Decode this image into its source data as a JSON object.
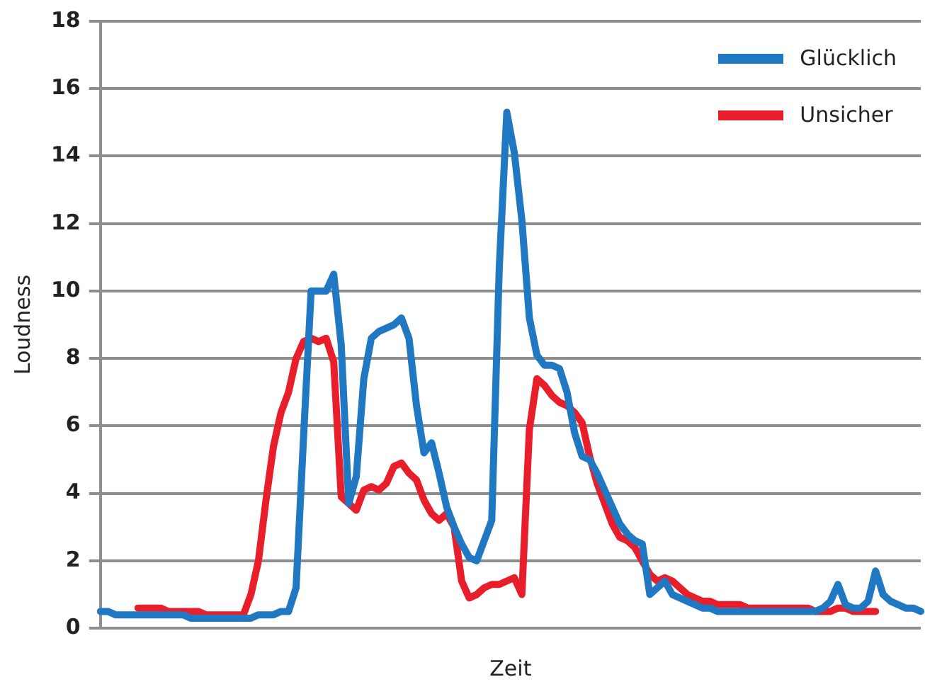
{
  "chart_data": {
    "type": "line",
    "xlabel": "Zeit",
    "ylabel": "Loudness",
    "categories": [
      null,
      null,
      null,
      null,
      null,
      null,
      null,
      null,
      null,
      null,
      null,
      null,
      null,
      null,
      null,
      null,
      null,
      null,
      null,
      null,
      null,
      null,
      null,
      null,
      null,
      null,
      null,
      null,
      null,
      null,
      null,
      null,
      null,
      null,
      null,
      null,
      null,
      null,
      null,
      null,
      null,
      null,
      null,
      null,
      null,
      null,
      null,
      null,
      null,
      null,
      null,
      null,
      null,
      null,
      null,
      null,
      null,
      null,
      null,
      null,
      null,
      null,
      null,
      null,
      null,
      null,
      null,
      null,
      null,
      null,
      null,
      null,
      null,
      null,
      null,
      null,
      null,
      null,
      null,
      null,
      null,
      null,
      null,
      null,
      null,
      null,
      null,
      null,
      null,
      null,
      null,
      null,
      null,
      null,
      null,
      null,
      null,
      null,
      null,
      null,
      null,
      null,
      null,
      null,
      null,
      null,
      null,
      null,
      null,
      null
    ],
    "series": [
      {
        "name": "Glücklich",
        "color": "#1f78c1",
        "values": [
          0.5,
          0.5,
          0.4,
          0.4,
          0.4,
          0.4,
          0.4,
          0.4,
          0.4,
          0.4,
          0.4,
          0.4,
          0.3,
          0.3,
          0.3,
          0.3,
          0.3,
          0.3,
          0.3,
          0.3,
          0.3,
          0.4,
          0.4,
          0.4,
          0.5,
          0.5,
          1.2,
          5.7,
          10.0,
          10.0,
          10.0,
          10.5,
          8.4,
          3.7,
          4.5,
          7.4,
          8.6,
          8.8,
          8.9,
          9.0,
          9.2,
          8.6,
          6.6,
          5.2,
          5.5,
          4.6,
          3.6,
          3.0,
          2.5,
          2.1,
          2.0,
          2.6,
          3.2,
          10.7,
          15.3,
          14.1,
          12.1,
          9.2,
          8.1,
          7.8,
          7.8,
          7.7,
          7.0,
          5.8,
          5.1,
          5.0,
          4.6,
          4.1,
          3.6,
          3.1,
          2.8,
          2.6,
          2.5,
          1.0,
          1.2,
          1.4,
          1.0,
          0.9,
          0.8,
          0.7,
          0.6,
          0.6,
          0.5,
          0.5,
          0.5,
          0.5,
          0.5,
          0.5,
          0.5,
          0.5,
          0.5,
          0.5,
          0.5,
          0.5,
          0.5,
          0.5,
          0.6,
          0.8,
          1.3,
          0.7,
          0.6,
          0.6,
          0.8,
          1.7,
          1.0,
          0.8,
          0.7,
          0.6,
          0.6,
          0.5
        ]
      },
      {
        "name": "Unsicher",
        "color": "#e81e2a",
        "values": [
          null,
          null,
          null,
          null,
          null,
          0.6,
          0.6,
          0.6,
          0.6,
          0.5,
          0.5,
          0.5,
          0.5,
          0.5,
          0.4,
          0.4,
          0.4,
          0.4,
          0.4,
          0.4,
          1.0,
          2.0,
          3.8,
          5.4,
          6.4,
          7.0,
          8.0,
          8.5,
          8.6,
          8.5,
          8.6,
          7.9,
          3.9,
          3.7,
          3.5,
          4.1,
          4.2,
          4.1,
          4.3,
          4.8,
          4.9,
          4.6,
          4.4,
          3.8,
          3.4,
          3.2,
          3.4,
          3.0,
          1.4,
          0.9,
          1.0,
          1.2,
          1.3,
          1.3,
          1.4,
          1.5,
          1.0,
          5.9,
          7.4,
          7.2,
          6.9,
          6.7,
          6.6,
          6.4,
          6.1,
          5.1,
          4.3,
          3.7,
          3.1,
          2.7,
          2.6,
          2.4,
          2.0,
          1.6,
          1.4,
          1.5,
          1.4,
          1.2,
          1.0,
          0.9,
          0.8,
          0.8,
          0.7,
          0.7,
          0.7,
          0.7,
          0.6,
          0.6,
          0.6,
          0.6,
          0.6,
          0.6,
          0.6,
          0.6,
          0.6,
          0.5,
          0.5,
          0.5,
          0.6,
          0.6,
          0.5,
          0.5,
          0.5,
          0.5,
          null,
          null,
          null,
          null,
          null,
          null
        ]
      }
    ],
    "ylim": [
      0,
      18
    ],
    "yticks": [
      0,
      2,
      4,
      6,
      8,
      10,
      12,
      14,
      16,
      18
    ],
    "grid": "y",
    "legend": "top right",
    "marker": "none",
    "line_style": "solid"
  }
}
